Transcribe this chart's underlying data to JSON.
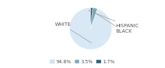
{
  "slices": [
    94.8,
    3.5,
    1.7
  ],
  "labels": [
    "WHITE",
    "HISPANIC",
    "BLACK"
  ],
  "colors": [
    "#d9e8f5",
    "#7baabf",
    "#2e5f7a"
  ],
  "legend_labels": [
    "94.8%",
    "3.5%",
    "1.7%"
  ],
  "legend_colors": [
    "#d9e8f5",
    "#7baabf",
    "#2e5f7a"
  ],
  "label_fontsize": 5.2,
  "legend_fontsize": 5.0,
  "startangle": 90,
  "text_color": "#555555"
}
